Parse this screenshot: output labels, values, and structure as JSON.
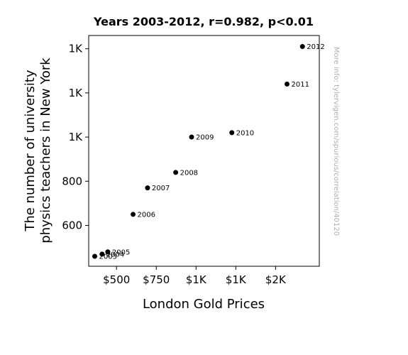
{
  "chart_data": {
    "type": "scatter",
    "title": "Years 2003-2012, r=0.982, p<0.01",
    "xlabel": "London Gold Prices",
    "ylabel_lines": [
      "The number of university",
      "physics teachers in New York"
    ],
    "xlim": [
      325,
      1775
    ],
    "ylim": [
      415,
      1460
    ],
    "x_ticks": [
      {
        "value": 500,
        "label": "$500"
      },
      {
        "value": 750,
        "label": "$750"
      },
      {
        "value": 1000,
        "label": "$1K"
      },
      {
        "value": 1250,
        "label": "$1K"
      },
      {
        "value": 1500,
        "label": "$2K"
      }
    ],
    "y_ticks": [
      {
        "value": 600,
        "label": "600"
      },
      {
        "value": 800,
        "label": "800"
      },
      {
        "value": 1000,
        "label": "1K"
      },
      {
        "value": 1200,
        "label": "1K"
      },
      {
        "value": 1400,
        "label": "1K"
      }
    ],
    "points": [
      {
        "x": 363,
        "y": 460,
        "label": "2003"
      },
      {
        "x": 409,
        "y": 470,
        "label": "2004"
      },
      {
        "x": 445,
        "y": 480,
        "label": "2005"
      },
      {
        "x": 604,
        "y": 650,
        "label": "2006"
      },
      {
        "x": 695,
        "y": 770,
        "label": "2007"
      },
      {
        "x": 872,
        "y": 840,
        "label": "2008"
      },
      {
        "x": 972,
        "y": 1000,
        "label": "2009"
      },
      {
        "x": 1225,
        "y": 1020,
        "label": "2010"
      },
      {
        "x": 1572,
        "y": 1240,
        "label": "2011"
      },
      {
        "x": 1669,
        "y": 1410,
        "label": "2012"
      }
    ],
    "marker_color": "#000000",
    "grid": false,
    "watermark": "More info: tylervigen.com/spurious/correlation/40120"
  }
}
